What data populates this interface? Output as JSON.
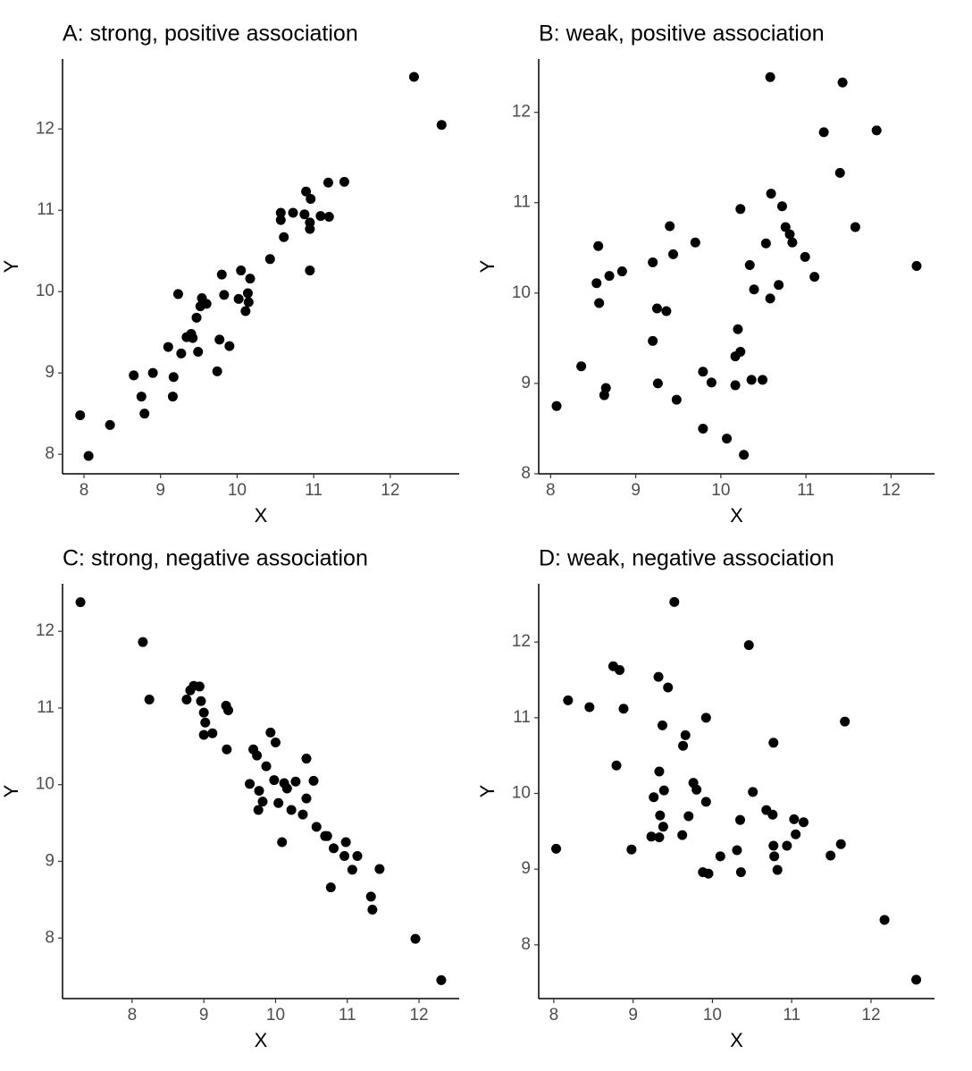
{
  "chart_data": [
    {
      "type": "scatter",
      "title": "A: strong, positive association",
      "x_label": "X",
      "y_label": "Y",
      "color": "#000000",
      "xlim": [
        7.72,
        12.9
      ],
      "ylim": [
        7.76,
        12.86
      ],
      "xticks": [
        8,
        9,
        10,
        11,
        12
      ],
      "yticks": [
        8,
        9,
        10,
        11,
        12
      ],
      "x": [
        7.95,
        8.06,
        8.34,
        8.65,
        8.75,
        8.79,
        8.9,
        9.1,
        9.16,
        9.17,
        9.23,
        9.27,
        9.34,
        9.4,
        9.42,
        9.47,
        9.49,
        9.52,
        9.54,
        9.6,
        9.74,
        9.77,
        9.8,
        9.83,
        9.9,
        10.05,
        10.02,
        10.11,
        10.14,
        10.15,
        10.17,
        10.43,
        10.57,
        10.57,
        10.61,
        10.73,
        10.88,
        10.9,
        10.95,
        10.95,
        10.96,
        10.95,
        11.09,
        11.2,
        11.19,
        11.4,
        12.31,
        12.67
      ],
      "values": [
        8.48,
        7.98,
        8.36,
        8.97,
        8.71,
        8.5,
        9.0,
        9.32,
        8.71,
        8.95,
        9.97,
        9.24,
        9.44,
        9.48,
        9.43,
        9.68,
        9.26,
        9.82,
        9.92,
        9.85,
        9.02,
        9.41,
        10.21,
        9.96,
        9.33,
        10.26,
        9.91,
        9.76,
        9.98,
        9.87,
        10.16,
        10.4,
        10.97,
        10.88,
        10.67,
        10.97,
        10.95,
        11.23,
        10.26,
        10.85,
        11.14,
        10.77,
        10.93,
        10.92,
        11.34,
        11.35,
        12.64,
        12.05
      ]
    },
    {
      "type": "scatter",
      "title": "B: weak, positive association",
      "x_label": "X",
      "y_label": "Y",
      "color": "#000000",
      "xlim": [
        7.86,
        12.51
      ],
      "ylim": [
        8.0,
        12.59
      ],
      "xticks": [
        8,
        9,
        10,
        11,
        12
      ],
      "yticks": [
        8,
        9,
        10,
        11,
        12
      ],
      "x": [
        8.07,
        8.36,
        8.56,
        8.54,
        8.57,
        8.65,
        8.63,
        8.69,
        8.84,
        9.2,
        9.2,
        9.25,
        9.26,
        9.36,
        9.4,
        9.44,
        9.48,
        9.7,
        9.79,
        9.79,
        9.89,
        10.07,
        10.17,
        10.17,
        10.2,
        10.23,
        10.23,
        10.27,
        10.34,
        10.36,
        10.39,
        10.49,
        10.53,
        10.58,
        10.59,
        10.58,
        10.68,
        10.72,
        10.76,
        10.81,
        10.84,
        10.99,
        11.1,
        11.21,
        11.4,
        11.43,
        11.58,
        11.83,
        12.3
      ],
      "values": [
        8.75,
        9.19,
        10.52,
        10.11,
        9.89,
        8.95,
        8.87,
        10.19,
        10.24,
        10.34,
        9.47,
        9.83,
        9.0,
        9.8,
        10.74,
        10.43,
        8.82,
        10.56,
        9.13,
        8.5,
        9.01,
        8.39,
        8.98,
        9.3,
        9.6,
        9.35,
        10.93,
        8.21,
        10.31,
        9.04,
        10.04,
        9.04,
        10.55,
        12.39,
        11.1,
        9.94,
        10.09,
        10.96,
        10.73,
        10.65,
        10.56,
        10.4,
        10.18,
        11.78,
        11.33,
        12.33,
        10.73,
        11.8,
        10.3
      ]
    },
    {
      "type": "scatter",
      "title": "C: strong, negative association",
      "x_label": "X",
      "y_label": "Y",
      "color": "#000000",
      "xlim": [
        7.03,
        12.56
      ],
      "ylim": [
        7.21,
        12.62
      ],
      "xticks": [
        8,
        9,
        10,
        11,
        12
      ],
      "yticks": [
        8,
        9,
        10,
        11,
        12
      ],
      "x": [
        7.28,
        8.15,
        8.24,
        8.76,
        8.81,
        8.86,
        8.94,
        8.96,
        9.0,
        9.02,
        9.0,
        9.12,
        9.31,
        9.34,
        9.32,
        9.64,
        9.69,
        9.74,
        9.77,
        9.76,
        9.82,
        9.87,
        9.93,
        9.98,
        10.0,
        10.04,
        10.12,
        10.16,
        10.09,
        10.22,
        10.28,
        10.38,
        10.43,
        10.43,
        10.53,
        10.57,
        10.69,
        10.72,
        10.77,
        10.81,
        10.96,
        10.98,
        11.07,
        11.14,
        11.33,
        11.35,
        11.45,
        11.95,
        12.31
      ],
      "values": [
        12.38,
        11.86,
        11.11,
        11.11,
        11.23,
        11.29,
        11.28,
        11.09,
        10.94,
        10.81,
        10.65,
        10.67,
        11.03,
        10.97,
        10.46,
        10.01,
        10.46,
        10.38,
        9.92,
        9.67,
        9.78,
        10.24,
        10.68,
        10.06,
        10.55,
        9.76,
        10.02,
        9.95,
        9.25,
        9.67,
        10.04,
        9.61,
        10.34,
        9.82,
        10.05,
        9.45,
        9.33,
        9.33,
        8.66,
        9.17,
        9.07,
        9.25,
        8.89,
        9.07,
        8.54,
        8.37,
        8.9,
        7.99,
        7.45
      ]
    },
    {
      "type": "scatter",
      "title": "D: weak, negative association",
      "x_label": "X",
      "y_label": "Y",
      "color": "#000000",
      "xlim": [
        7.81,
        12.8
      ],
      "ylim": [
        7.29,
        12.77
      ],
      "xticks": [
        8,
        9,
        10,
        11,
        12
      ],
      "yticks": [
        8,
        9,
        10,
        11,
        12
      ],
      "x": [
        8.03,
        8.18,
        8.45,
        8.75,
        8.83,
        8.79,
        8.88,
        8.98,
        9.23,
        9.26,
        9.32,
        9.33,
        9.33,
        9.34,
        9.37,
        9.38,
        9.39,
        9.44,
        9.52,
        9.62,
        9.63,
        9.66,
        9.7,
        9.76,
        9.8,
        9.88,
        9.92,
        9.92,
        9.95,
        10.1,
        10.31,
        10.35,
        10.36,
        10.46,
        10.51,
        10.68,
        10.76,
        10.77,
        10.77,
        10.78,
        10.82,
        10.94,
        11.03,
        11.05,
        11.15,
        11.49,
        11.62,
        11.67,
        12.17,
        12.57
      ],
      "values": [
        9.27,
        11.23,
        11.14,
        11.68,
        11.63,
        10.37,
        11.12,
        9.26,
        9.43,
        9.95,
        11.54,
        10.29,
        9.42,
        9.71,
        10.9,
        9.56,
        10.04,
        11.4,
        12.53,
        9.45,
        10.63,
        10.77,
        9.7,
        10.14,
        10.05,
        8.96,
        9.89,
        11.0,
        8.94,
        9.17,
        9.25,
        9.65,
        8.96,
        11.96,
        10.02,
        9.78,
        9.72,
        10.67,
        9.31,
        9.17,
        8.99,
        9.31,
        9.66,
        9.46,
        9.62,
        9.18,
        9.33,
        10.95,
        8.33,
        7.54
      ]
    }
  ]
}
